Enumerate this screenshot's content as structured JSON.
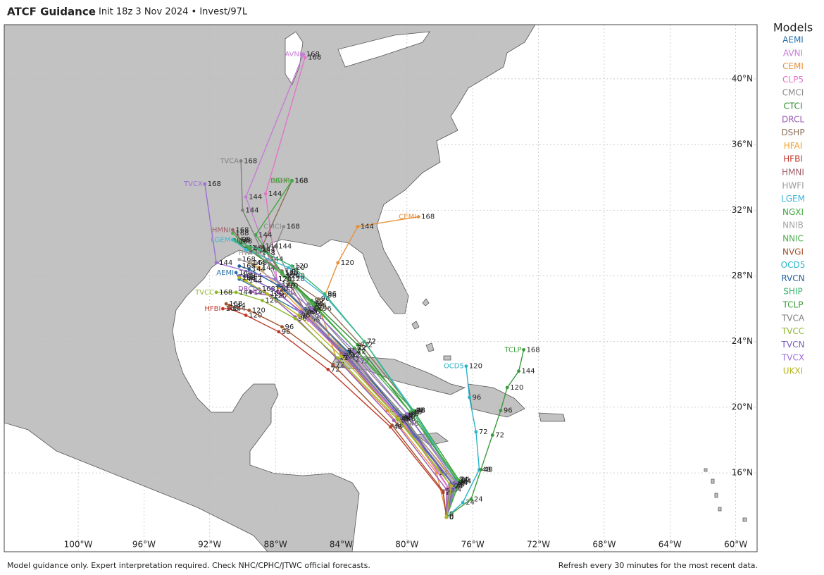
{
  "header": {
    "title": "ATCF Guidance",
    "subtitle": "Init 18z 3 Nov 2024 • Invest/97L"
  },
  "footer": {
    "left": "Model guidance only. Expert interpretation required. Check NHC/CPHC/JTWC official forecasts.",
    "right": "Refresh every 30 minutes for the most recent data."
  },
  "legend": {
    "title": "Models"
  },
  "map": {
    "lon_lim": [
      -104.5,
      -58.7
    ],
    "lat_lim": [
      11.2,
      43.3
    ],
    "grid": true,
    "lat_ticks": [
      {
        "value": 40,
        "label": "40°N"
      },
      {
        "value": 36,
        "label": "36°N"
      },
      {
        "value": 32,
        "label": "32°N"
      },
      {
        "value": 28,
        "label": "28°N"
      },
      {
        "value": 24,
        "label": "24°N"
      },
      {
        "value": 20,
        "label": "20°N"
      },
      {
        "value": 16,
        "label": "16°N"
      }
    ],
    "lon_ticks": [
      {
        "value": -100,
        "label": "100°W"
      },
      {
        "value": -96,
        "label": "96°W"
      },
      {
        "value": -92,
        "label": "92°W"
      },
      {
        "value": -88,
        "label": "88°W"
      },
      {
        "value": -84,
        "label": "84°W"
      },
      {
        "value": -80,
        "label": "80°W"
      },
      {
        "value": -76,
        "label": "76°W"
      },
      {
        "value": -72,
        "label": "72°W"
      },
      {
        "value": -68,
        "label": "68°W"
      },
      {
        "value": -64,
        "label": "64°W"
      },
      {
        "value": -60,
        "label": "60°W"
      }
    ],
    "taus": [
      0,
      24,
      48,
      72,
      96,
      120,
      144,
      168
    ],
    "tracks": [
      {
        "name": "AEMI",
        "color": "#2a6fa8",
        "show_name": true,
        "lon": [
          -77.6,
          -77.3,
          -80.5,
          -83.8,
          -86.5,
          -88.3,
          -90.2,
          -90.4
        ],
        "lat": [
          13.3,
          15.4,
          19.4,
          23.2,
          25.8,
          26.8,
          27.8,
          28.2
        ]
      },
      {
        "name": "AVNI",
        "color": "#c77bd6",
        "show_name": true,
        "lon": [
          -77.6,
          -77.4,
          -80.0,
          -83.0,
          -85.8,
          -87.8,
          -89.8,
          -86.3
        ],
        "lat": [
          13.3,
          15.0,
          19.0,
          22.8,
          25.5,
          27.5,
          32.8,
          41.5
        ]
      },
      {
        "name": "CEMI",
        "color": "#e8903a",
        "show_name": true,
        "lon": [
          -77.6,
          -78.2,
          -81.2,
          -84.3,
          -85.3,
          -84.2,
          -83.0,
          -79.3
        ],
        "lat": [
          13.5,
          16.0,
          19.8,
          23.0,
          26.0,
          28.8,
          31.0,
          31.6
        ]
      },
      {
        "name": "CLP5",
        "color": "#e374c8",
        "show_name": false,
        "lon": [
          -77.6,
          -77.5,
          -80.3,
          -83.6,
          -86.0,
          -87.8,
          -88.6,
          -86.2
        ],
        "lat": [
          13.3,
          15.1,
          19.2,
          22.9,
          25.3,
          27.0,
          33.0,
          41.3
        ]
      },
      {
        "name": "CMCI",
        "color": "#8a8a8a",
        "show_name": true,
        "lon": [
          -77.6,
          -77.0,
          -80.0,
          -83.5,
          -86.0,
          -87.2,
          -88.0,
          -87.5
        ],
        "lat": [
          13.3,
          15.6,
          19.6,
          23.5,
          26.3,
          28.0,
          29.8,
          31.0
        ]
      },
      {
        "name": "CTCI",
        "color": "#2e8b2e",
        "show_name": false,
        "lon": [
          -77.6,
          -77.0,
          -79.8,
          -83.0,
          -85.8,
          -87.6,
          -89.8,
          -90.5
        ],
        "lat": [
          13.3,
          15.6,
          19.7,
          23.8,
          26.5,
          28.2,
          29.7,
          30.2
        ]
      },
      {
        "name": "DRCL",
        "color": "#9b59b6",
        "show_name": true,
        "lon": [
          -77.6,
          -77.6,
          -80.8,
          -84.3,
          -86.8,
          -88.3,
          -89.5,
          -89.0
        ],
        "lat": [
          13.3,
          15.0,
          19.2,
          23.0,
          25.5,
          26.8,
          27.0,
          27.2
        ]
      },
      {
        "name": "DSHP",
        "color": "#8b6f5a",
        "show_name": true,
        "lon": [
          -77.6,
          -76.8,
          -79.6,
          -82.8,
          -85.4,
          -87.6,
          -88.8,
          -87.0
        ],
        "lat": [
          13.3,
          15.5,
          19.8,
          23.8,
          26.6,
          28.1,
          29.8,
          33.8
        ]
      },
      {
        "name": "HFAI",
        "color": "#f0a030",
        "show_name": false,
        "lon": [
          -77.6,
          -77.0,
          -80.2,
          -83.6,
          -86.4,
          -87.8,
          -89.0,
          -89.5
        ],
        "lat": [
          13.3,
          15.4,
          19.3,
          23.2,
          25.9,
          27.3,
          28.5,
          28.8
        ]
      },
      {
        "name": "HFBI",
        "color": "#c0392b",
        "show_name": true,
        "lon": [
          -77.6,
          -77.8,
          -81.0,
          -84.8,
          -87.8,
          -89.8,
          -90.8,
          -91.2
        ],
        "lat": [
          13.3,
          14.8,
          18.8,
          22.3,
          24.6,
          25.6,
          26.0,
          26.0
        ]
      },
      {
        "name": "HMNI",
        "color": "#a0616a",
        "show_name": true,
        "lon": [
          -77.6,
          -77.3,
          -80.6,
          -84.0,
          -86.2,
          -87.6,
          -89.5,
          -90.6
        ],
        "lat": [
          13.3,
          15.2,
          19.4,
          23.3,
          25.9,
          28.3,
          29.5,
          30.8
        ]
      },
      {
        "name": "HWFI",
        "color": "#9a9a9a",
        "show_name": true,
        "lon": [
          -77.6,
          -77.1,
          -80.3,
          -83.8,
          -86.0,
          -87.2,
          -88.5,
          -89.0
        ],
        "lat": [
          13.3,
          15.4,
          19.5,
          23.4,
          26.0,
          27.8,
          29.0,
          29.4
        ]
      },
      {
        "name": "LGEM",
        "color": "#3bb8d8",
        "show_name": true,
        "lon": [
          -77.6,
          -77.0,
          -79.6,
          -82.6,
          -85.0,
          -87.2,
          -89.8,
          -90.6
        ],
        "lat": [
          13.3,
          15.5,
          19.8,
          24.0,
          26.8,
          28.5,
          29.6,
          30.2
        ]
      },
      {
        "name": "NGXI",
        "color": "#3fa83f",
        "show_name": true,
        "lon": [
          -77.6,
          -76.8,
          -79.6,
          -83.2,
          -85.6,
          -87.6,
          -89.2,
          -87.0
        ],
        "lat": [
          13.3,
          15.5,
          19.8,
          23.6,
          26.2,
          28.2,
          30.5,
          33.8
        ]
      },
      {
        "name": "NNIB",
        "color": "#a5a5a5",
        "show_name": false,
        "lon": [
          -77.6,
          -77.2,
          -80.4,
          -83.8,
          -86.2,
          -87.6,
          -89.6,
          -90.2
        ],
        "lat": [
          13.3,
          15.4,
          19.4,
          23.3,
          25.8,
          27.4,
          28.8,
          29.0
        ]
      },
      {
        "name": "NNIC",
        "color": "#4caf50",
        "show_name": false,
        "lon": [
          -77.6,
          -76.9,
          -79.8,
          -83.2,
          -85.8,
          -87.5,
          -89.6,
          -90.6
        ],
        "lat": [
          13.3,
          15.6,
          19.7,
          23.6,
          26.3,
          28.0,
          29.7,
          30.6
        ]
      },
      {
        "name": "NVGI",
        "color": "#a0522d",
        "show_name": false,
        "lon": [
          -77.6,
          -77.8,
          -80.9,
          -84.5,
          -87.6,
          -89.6,
          -90.8,
          -91.0
        ],
        "lat": [
          13.3,
          14.9,
          18.9,
          22.6,
          24.9,
          25.9,
          26.2,
          26.3
        ]
      },
      {
        "name": "OCD5",
        "color": "#2ab3c8",
        "show_name": true,
        "lon": [
          -77.6,
          -76.6,
          -75.6,
          -75.8,
          -76.2,
          -76.4
        ],
        "lat": [
          13.3,
          14.2,
          16.2,
          18.5,
          20.6,
          22.5
        ]
      },
      {
        "name": "RVCN",
        "color": "#1f5f9f",
        "show_name": false,
        "lon": [
          -77.6,
          -77.2,
          -80.4,
          -83.6,
          -86.2,
          -87.8,
          -89.6,
          -90.2
        ],
        "lat": [
          13.3,
          15.3,
          19.5,
          23.4,
          26.0,
          27.4,
          28.4,
          28.6
        ]
      },
      {
        "name": "SHIP",
        "color": "#3cb371",
        "show_name": false,
        "lon": [
          -77.6,
          -77.0,
          -79.7,
          -82.6,
          -85.0,
          -87.0,
          -89.0,
          -90.4
        ],
        "lat": [
          13.3,
          15.5,
          19.8,
          24.0,
          26.9,
          28.6,
          29.6,
          30.1
        ]
      },
      {
        "name": "TCLP",
        "color": "#3a9a3a",
        "show_name": true,
        "lon": [
          -77.6,
          -76.1,
          -75.5,
          -74.8,
          -74.3,
          -73.9,
          -73.2,
          -72.9
        ],
        "lat": [
          13.3,
          14.4,
          16.2,
          18.3,
          19.8,
          21.2,
          22.2,
          23.5
        ]
      },
      {
        "name": "TVCA",
        "color": "#808080",
        "show_name": true,
        "lon": [
          -77.6,
          -77.4,
          -80.2,
          -83.5,
          -86.0,
          -88.0,
          -90.0,
          -90.1
        ],
        "lat": [
          13.3,
          15.3,
          19.5,
          23.2,
          25.8,
          27.8,
          32.0,
          35.0
        ]
      },
      {
        "name": "TVCC",
        "color": "#8fb82f",
        "show_name": true,
        "lon": [
          -77.6,
          -77.3,
          -80.6,
          -84.2,
          -86.8,
          -88.8,
          -90.4,
          -91.6
        ],
        "lat": [
          13.3,
          15.2,
          19.3,
          23.0,
          25.4,
          26.5,
          27.0,
          27.0
        ]
      },
      {
        "name": "TVCN",
        "color": "#7a5cc0",
        "show_name": false,
        "lon": [
          -77.6,
          -77.2,
          -80.4,
          -83.8,
          -86.4,
          -88.2,
          -89.8,
          -90.2
        ],
        "lat": [
          13.3,
          15.3,
          19.4,
          23.3,
          25.8,
          27.2,
          28.0,
          28.0
        ]
      },
      {
        "name": "TVCX",
        "color": "#9b6fd6",
        "show_name": true,
        "lon": [
          -77.6,
          -77.0,
          -80.0,
          -83.2,
          -85.8,
          -88.0,
          -91.6,
          -92.3
        ],
        "lat": [
          13.3,
          15.4,
          19.6,
          23.4,
          26.0,
          27.8,
          28.8,
          33.6
        ]
      },
      {
        "name": "UKXI",
        "color": "#b5b520",
        "show_name": false,
        "lon": [
          -77.6,
          -77.3,
          -80.5,
          -84.0,
          -86.6,
          -88.5,
          -89.8,
          -90.2
        ],
        "lat": [
          13.3,
          15.2,
          19.3,
          23.1,
          25.6,
          26.9,
          27.7,
          27.9
        ]
      }
    ]
  }
}
